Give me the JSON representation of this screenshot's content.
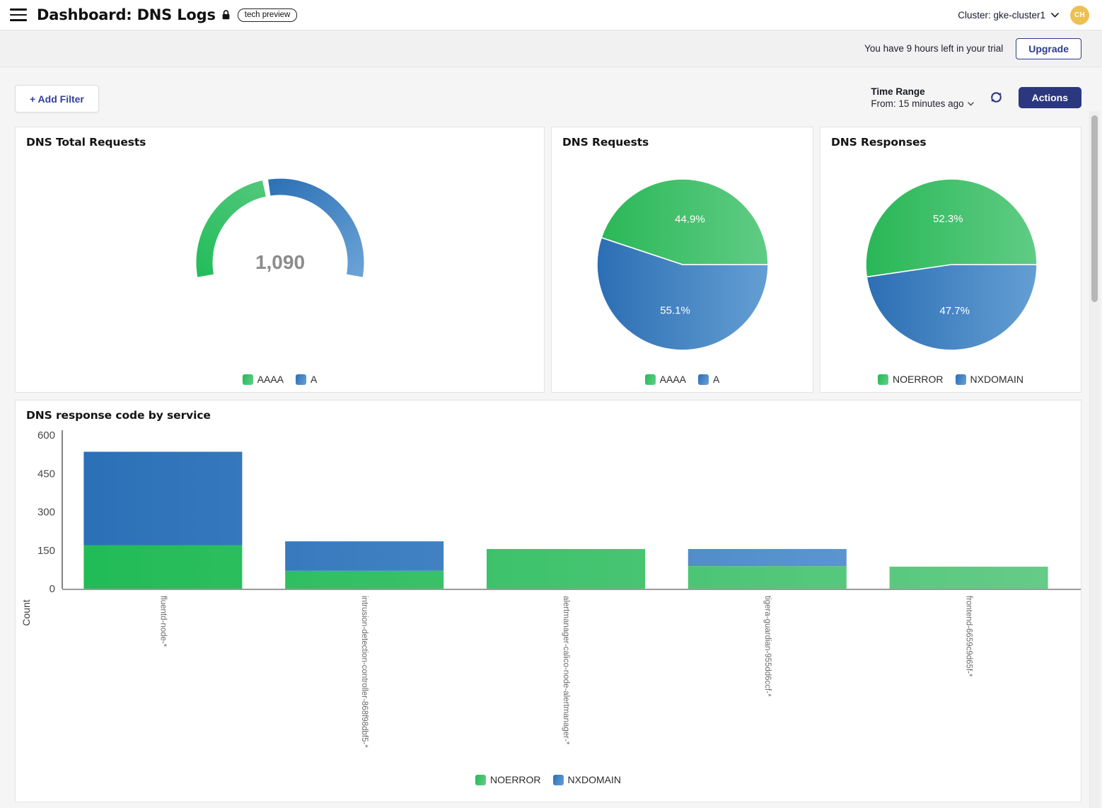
{
  "header": {
    "title": "Dashboard: DNS Logs",
    "badge": "tech preview",
    "cluster_label": "Cluster: gke-cluster1",
    "avatar_initials": "CH"
  },
  "trial_bar": {
    "message": "You have 9 hours left in your trial",
    "upgrade_label": "Upgrade"
  },
  "toolbar": {
    "add_filter_label": "+ Add Filter",
    "time_range_label": "Time Range",
    "time_range_value": "From: 15 minutes ago",
    "actions_label": "Actions"
  },
  "colors": {
    "green_dark": "#21ba55",
    "green_light": "#67cd8a",
    "blue_dark": "#2a6fb7",
    "blue_light": "#68a0d5",
    "navy": "#2b377e",
    "gauge_value_gray": "#8c8c8c",
    "avatar_gold": "#eec052"
  },
  "chart_data": [
    {
      "type": "gauge",
      "title": "DNS Total Requests",
      "center_value": "1,090",
      "series": [
        {
          "name": "AAAA",
          "pct": 44.9
        },
        {
          "name": "A",
          "pct": 55.1
        }
      ],
      "start_deg": 190,
      "end_deg": -10
    },
    {
      "type": "pie",
      "title": "DNS Requests",
      "slices": [
        {
          "label": "AAAA",
          "pct": 44.9,
          "value_text": "44.9%"
        },
        {
          "label": "A",
          "pct": 55.1,
          "value_text": "55.1%"
        }
      ],
      "legend_position": "bottom"
    },
    {
      "type": "pie",
      "title": "DNS Responses",
      "slices": [
        {
          "label": "NOERROR",
          "pct": 52.3,
          "value_text": "52.3%"
        },
        {
          "label": "NXDOMAIN",
          "pct": 47.7,
          "value_text": "47.7%"
        }
      ],
      "legend_position": "bottom"
    },
    {
      "type": "bar",
      "title": "DNS response code by service",
      "stacked": true,
      "ylabel": "Count",
      "ylim": [
        0,
        600
      ],
      "yticks": [
        0,
        150,
        300,
        450,
        600
      ],
      "grid": false,
      "legend_position": "bottom",
      "categories": [
        "fluentd-node-*",
        "intrusion-detection-controller-868f98dbf5-*",
        "alertmanager-calico-node-alertmanager-*",
        "tigera-guardian-955dd6ccf-*",
        "frontend-6659c9d65f-*"
      ],
      "series": [
        {
          "name": "NOERROR",
          "values": [
            170,
            70,
            155,
            88,
            86
          ]
        },
        {
          "name": "NXDOMAIN",
          "values": [
            365,
            115,
            0,
            67,
            0
          ]
        }
      ]
    }
  ]
}
